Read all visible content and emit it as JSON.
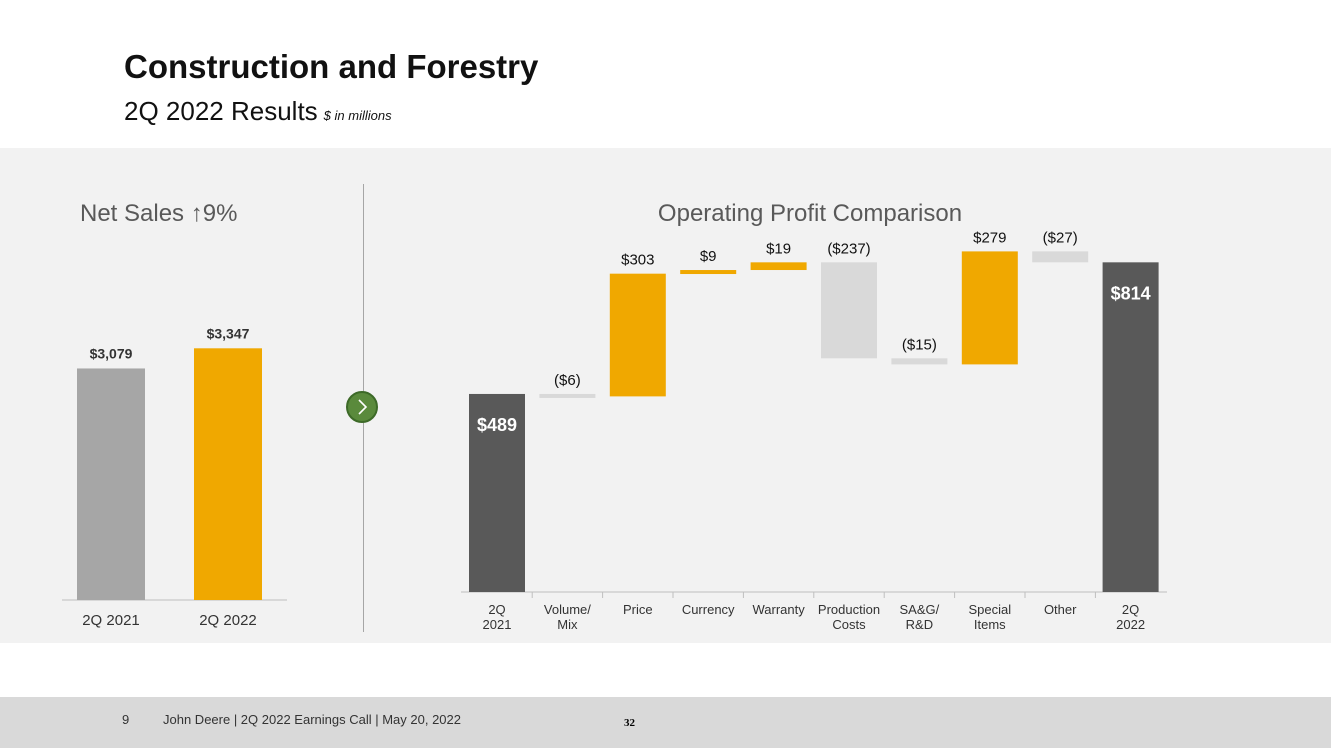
{
  "header": {
    "title": "Construction and Forestry",
    "subtitle": "2Q 2022 Results",
    "units": "$ in millions"
  },
  "colors": {
    "gray_bar": "#a6a6a6",
    "yellow": "#f0a800",
    "dark": "#595959",
    "light_gray": "#d9d9d9",
    "arrow_green": "#5a8a3c"
  },
  "chart_data": [
    {
      "type": "bar",
      "title": "Net Sales ↑9%",
      "categories": [
        "2Q 2021",
        "2Q 2022"
      ],
      "values": [
        3079,
        3347
      ],
      "data_labels": [
        "$3,079",
        "$3,347"
      ],
      "colors": [
        "#a6a6a6",
        "#f0a800"
      ]
    },
    {
      "type": "bar",
      "subtype": "waterfall",
      "title": "Operating Profit Comparison",
      "categories": [
        "2Q 2021",
        "Volume/ Mix",
        "Price",
        "Currency",
        "Warranty",
        "Production Costs",
        "SA&G/ R&D",
        "Special Items",
        "Other",
        "2Q 2022"
      ],
      "values": [
        489,
        -6,
        303,
        9,
        19,
        -237,
        -15,
        279,
        -27,
        814
      ],
      "data_labels": [
        "$489",
        "($6)",
        "$303",
        "$9",
        "$19",
        "($237)",
        "($15)",
        "$279",
        "($27)",
        "$814"
      ],
      "kinds": [
        "total",
        "delta",
        "delta",
        "delta",
        "delta",
        "delta",
        "delta",
        "delta",
        "delta",
        "total"
      ]
    }
  ],
  "footer": {
    "page": "9",
    "text": "John Deere | 2Q 2022 Earnings Call | May 20, 2022",
    "slide_number": "32"
  }
}
